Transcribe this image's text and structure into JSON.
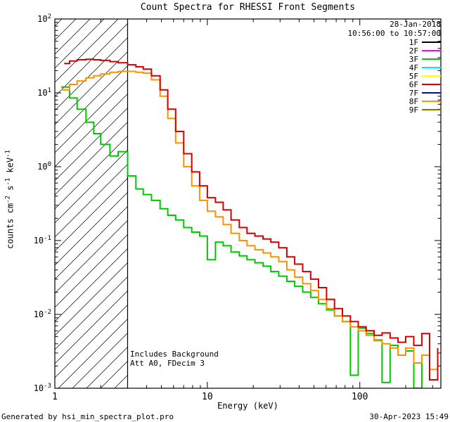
{
  "title": "Count Spectra for RHESSI Front Segments",
  "annotations": {
    "line1": "Includes Background",
    "line2": "Att A0, FDecim 3"
  },
  "legend": {
    "date": "28-Jan-2018",
    "time_range": "10:56:00 to 10:57:00",
    "entries": [
      {
        "label": "1F",
        "color": "#000000"
      },
      {
        "label": "2F",
        "color": "#ff00ff"
      },
      {
        "label": "3F",
        "color": "#00c800"
      },
      {
        "label": "4F",
        "color": "#00e8ff"
      },
      {
        "label": "5F",
        "color": "#ffff00"
      },
      {
        "label": "6F",
        "color": "#d40000"
      },
      {
        "label": "7F",
        "color": "#0000ff"
      },
      {
        "label": "8F",
        "color": "#ff9100"
      },
      {
        "label": "9F",
        "color": "#7a7a00"
      }
    ]
  },
  "footer": {
    "left": "Generated by hsi_min_spectra_plot.pro",
    "right": "30-Apr-2023 15:49"
  },
  "chart_data": {
    "type": "line",
    "title": "Count Spectra for RHESSI Front Segments",
    "xlabel": "Energy (keV)",
    "ylabel": "counts cm-2 s-1 keV-1",
    "ylabel_parts": [
      [
        "counts cm",
        ""
      ],
      [
        "-2",
        "sup"
      ],
      [
        " s",
        ""
      ],
      [
        "-1",
        "sup"
      ],
      [
        " keV",
        ""
      ],
      [
        "-1",
        "sup"
      ]
    ],
    "xscale": "log",
    "yscale": "log",
    "xlim": [
      1,
      340
    ],
    "ylim": [
      0.001,
      100
    ],
    "grid": false,
    "step_mode": true,
    "x_major_ticks": [
      {
        "value": 1,
        "label": "1"
      },
      {
        "value": 10,
        "label": "10"
      },
      {
        "value": 100,
        "label": "100"
      }
    ],
    "y_major_tick_exponents": [
      2,
      1,
      0,
      -1,
      -2,
      -3
    ],
    "hatch_region": {
      "xmin": 1,
      "xmax": 3
    },
    "legend_position": "top-right",
    "series": [
      {
        "name": "3F",
        "color": "#00c800",
        "points": [
          [
            1.1,
            12
          ],
          [
            1.25,
            8.5
          ],
          [
            1.4,
            6
          ],
          [
            1.6,
            4
          ],
          [
            1.8,
            2.8
          ],
          [
            2.0,
            2.0
          ],
          [
            2.3,
            1.4
          ],
          [
            2.6,
            1.6
          ],
          [
            3.0,
            0.75
          ],
          [
            3.4,
            0.5
          ],
          [
            3.8,
            0.42
          ],
          [
            4.3,
            0.35
          ],
          [
            4.9,
            0.27
          ],
          [
            5.5,
            0.22
          ],
          [
            6.2,
            0.19
          ],
          [
            7.0,
            0.15
          ],
          [
            7.9,
            0.13
          ],
          [
            8.9,
            0.115
          ],
          [
            10,
            0.055
          ],
          [
            11.3,
            0.095
          ],
          [
            12.7,
            0.085
          ],
          [
            14.3,
            0.07
          ],
          [
            16.2,
            0.062
          ],
          [
            18.2,
            0.055
          ],
          [
            20.5,
            0.05
          ],
          [
            23.2,
            0.045
          ],
          [
            26.1,
            0.038
          ],
          [
            29.4,
            0.033
          ],
          [
            33.2,
            0.028
          ],
          [
            37.4,
            0.024
          ],
          [
            42.2,
            0.02
          ],
          [
            47.6,
            0.017
          ],
          [
            53.6,
            0.014
          ],
          [
            60.5,
            0.0115
          ],
          [
            68.2,
            0.0095
          ],
          [
            76.9,
            0.008
          ],
          [
            86.7,
            0.0015
          ],
          [
            97.7,
            0.0065
          ],
          [
            110,
            0.0055
          ],
          [
            124,
            0.0045
          ],
          [
            140,
            0.0012
          ],
          [
            158,
            0.0038
          ],
          [
            178,
            0.0028
          ],
          [
            200,
            0.0032
          ],
          [
            226,
            0.001
          ],
          [
            255,
            0.0025
          ]
        ]
      },
      {
        "name": "8F",
        "color": "#ff9100",
        "points": [
          [
            1.1,
            11
          ],
          [
            1.25,
            13
          ],
          [
            1.4,
            14.5
          ],
          [
            1.6,
            16
          ],
          [
            1.8,
            17
          ],
          [
            2.0,
            18
          ],
          [
            2.3,
            19
          ],
          [
            2.6,
            19.5
          ],
          [
            3.0,
            19.5
          ],
          [
            3.4,
            19
          ],
          [
            3.8,
            18.5
          ],
          [
            4.3,
            15
          ],
          [
            4.9,
            9
          ],
          [
            5.5,
            4.5
          ],
          [
            6.2,
            2.1
          ],
          [
            7.0,
            1.0
          ],
          [
            7.9,
            0.55
          ],
          [
            8.9,
            0.35
          ],
          [
            10,
            0.25
          ],
          [
            11.3,
            0.21
          ],
          [
            12.7,
            0.165
          ],
          [
            14.3,
            0.125
          ],
          [
            16.2,
            0.1
          ],
          [
            18.2,
            0.085
          ],
          [
            20.5,
            0.075
          ],
          [
            23.2,
            0.068
          ],
          [
            26.1,
            0.06
          ],
          [
            29.4,
            0.052
          ],
          [
            33.2,
            0.04
          ],
          [
            37.4,
            0.032
          ],
          [
            42.2,
            0.026
          ],
          [
            47.6,
            0.021
          ],
          [
            53.6,
            0.016
          ],
          [
            60.5,
            0.012
          ],
          [
            68.2,
            0.0095
          ],
          [
            76.9,
            0.008
          ],
          [
            86.7,
            0.0068
          ],
          [
            97.7,
            0.006
          ],
          [
            110,
            0.0052
          ],
          [
            124,
            0.0044
          ],
          [
            140,
            0.004
          ],
          [
            158,
            0.0035
          ],
          [
            178,
            0.0028
          ],
          [
            200,
            0.0035
          ],
          [
            226,
            0.0022
          ],
          [
            255,
            0.0028
          ],
          [
            287,
            0.0018
          ],
          [
            324,
            0.0025
          ]
        ]
      },
      {
        "name": "6F",
        "color": "#d40000",
        "points": [
          [
            1.15,
            25
          ],
          [
            1.25,
            27
          ],
          [
            1.4,
            28
          ],
          [
            1.6,
            28.5
          ],
          [
            1.8,
            28
          ],
          [
            2.0,
            27.5
          ],
          [
            2.3,
            26.5
          ],
          [
            2.6,
            25.5
          ],
          [
            3.0,
            24
          ],
          [
            3.4,
            22.5
          ],
          [
            3.8,
            21
          ],
          [
            4.3,
            17
          ],
          [
            4.9,
            11
          ],
          [
            5.5,
            6.0
          ],
          [
            6.2,
            3.0
          ],
          [
            7.0,
            1.5
          ],
          [
            7.9,
            0.85
          ],
          [
            8.9,
            0.55
          ],
          [
            10,
            0.38
          ],
          [
            11.3,
            0.33
          ],
          [
            12.7,
            0.26
          ],
          [
            14.3,
            0.19
          ],
          [
            16.2,
            0.15
          ],
          [
            18.2,
            0.125
          ],
          [
            20.5,
            0.115
          ],
          [
            23.2,
            0.105
          ],
          [
            26.1,
            0.095
          ],
          [
            29.4,
            0.08
          ],
          [
            33.2,
            0.06
          ],
          [
            37.4,
            0.048
          ],
          [
            42.2,
            0.038
          ],
          [
            47.6,
            0.03
          ],
          [
            53.6,
            0.023
          ],
          [
            60.5,
            0.016
          ],
          [
            68.2,
            0.012
          ],
          [
            76.9,
            0.0095
          ],
          [
            86.7,
            0.008
          ],
          [
            97.7,
            0.0068
          ],
          [
            110,
            0.006
          ],
          [
            124,
            0.0052
          ],
          [
            140,
            0.0056
          ],
          [
            158,
            0.0048
          ],
          [
            178,
            0.0042
          ],
          [
            200,
            0.005
          ],
          [
            226,
            0.0038
          ],
          [
            255,
            0.0055
          ],
          [
            287,
            0.0013
          ],
          [
            324,
            0.0035
          ]
        ]
      }
    ]
  }
}
